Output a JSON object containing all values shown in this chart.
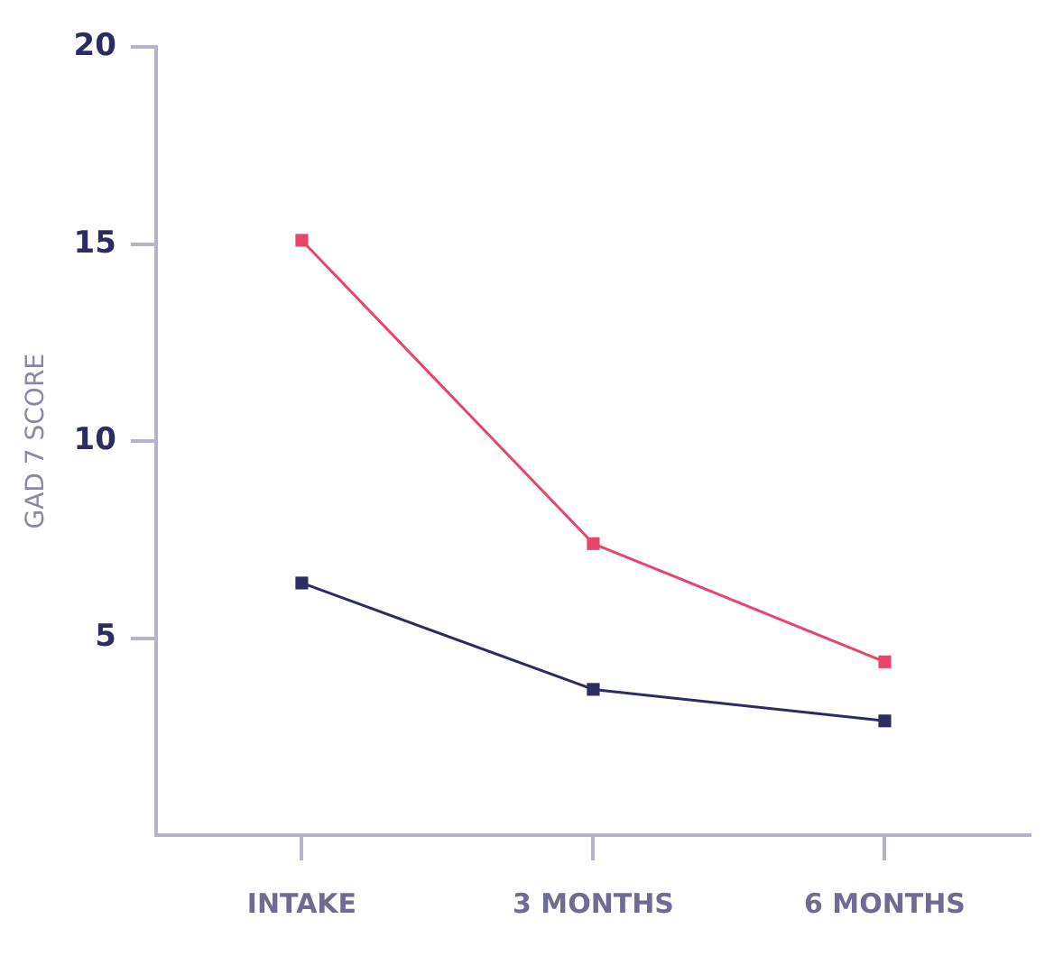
{
  "chart_data": {
    "type": "line",
    "ylabel": "GAD 7 SCORE",
    "categories": [
      "INTAKE",
      "3 MONTHS",
      "6 MONTHS"
    ],
    "series": [
      {
        "color": "#e8456a",
        "values": [
          15.1,
          7.4,
          4.4
        ]
      },
      {
        "color": "#2b2d62",
        "values": [
          6.4,
          3.7,
          2.9
        ]
      }
    ],
    "ylim": [
      0,
      20
    ],
    "yticks": [
      5,
      10,
      15,
      20
    ],
    "grid": false,
    "legend": false,
    "marker": "square",
    "line_style": "solid"
  }
}
